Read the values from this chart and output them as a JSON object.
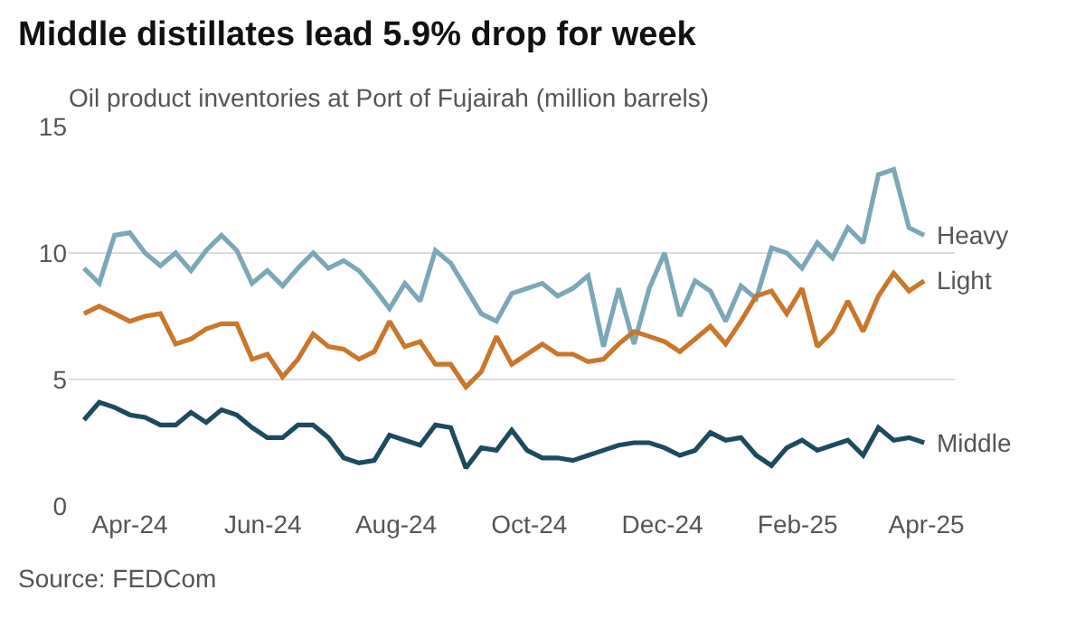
{
  "chart_data": {
    "type": "line",
    "title": "Middle distillates lead 5.9% drop for week",
    "subtitle": "Oil product inventories at Port of Fujairah (million barrels)",
    "x": [
      "2024-03-11",
      "2024-03-18",
      "2024-03-25",
      "2024-04-01",
      "2024-04-08",
      "2024-04-15",
      "2024-04-22",
      "2024-04-29",
      "2024-05-06",
      "2024-05-13",
      "2024-05-20",
      "2024-05-27",
      "2024-06-03",
      "2024-06-10",
      "2024-06-17",
      "2024-06-24",
      "2024-07-01",
      "2024-07-08",
      "2024-07-15",
      "2024-07-22",
      "2024-07-29",
      "2024-08-05",
      "2024-08-12",
      "2024-08-19",
      "2024-08-26",
      "2024-09-02",
      "2024-09-09",
      "2024-09-16",
      "2024-09-23",
      "2024-09-30",
      "2024-10-07",
      "2024-10-14",
      "2024-10-21",
      "2024-10-28",
      "2024-11-04",
      "2024-11-11",
      "2024-11-18",
      "2024-11-25",
      "2024-12-02",
      "2024-12-09",
      "2024-12-16",
      "2024-12-23",
      "2024-12-30",
      "2025-01-06",
      "2025-01-13",
      "2025-01-20",
      "2025-01-27",
      "2025-02-03",
      "2025-02-10",
      "2025-02-17",
      "2025-02-24",
      "2025-03-03",
      "2025-03-10",
      "2025-03-17",
      "2025-03-24",
      "2025-03-31"
    ],
    "series": [
      {
        "name": "Heavy",
        "color": "#7ba7b7",
        "values": [
          9.4,
          8.8,
          10.7,
          10.8,
          10.0,
          9.5,
          10.0,
          9.3,
          10.1,
          10.7,
          10.1,
          8.8,
          9.3,
          8.7,
          9.4,
          10.0,
          9.4,
          9.7,
          9.3,
          8.6,
          7.8,
          8.8,
          8.1,
          10.1,
          9.6,
          8.6,
          7.6,
          7.3,
          8.4,
          8.6,
          8.8,
          8.3,
          8.6,
          9.1,
          6.3,
          8.6,
          6.4,
          8.6,
          10.0,
          7.5,
          8.9,
          8.5,
          7.3,
          8.7,
          8.2,
          10.2,
          10.0,
          9.4,
          10.4,
          9.8,
          11.0,
          10.4,
          13.1,
          13.3,
          11.0,
          10.7
        ]
      },
      {
        "name": "Light",
        "color": "#c8772b",
        "values": [
          7.6,
          7.9,
          7.6,
          7.3,
          7.5,
          7.6,
          6.4,
          6.6,
          7.0,
          7.2,
          7.2,
          5.8,
          6.0,
          5.1,
          5.8,
          6.8,
          6.3,
          6.2,
          5.8,
          6.1,
          7.3,
          6.3,
          6.5,
          5.6,
          5.6,
          4.7,
          5.3,
          6.7,
          5.6,
          6.0,
          6.4,
          6.0,
          6.0,
          5.7,
          5.8,
          6.4,
          6.9,
          6.7,
          6.5,
          6.1,
          6.6,
          7.1,
          6.4,
          7.3,
          8.3,
          8.5,
          7.6,
          8.6,
          6.3,
          6.9,
          8.1,
          6.9,
          8.3,
          9.2,
          8.5,
          8.9
        ]
      },
      {
        "name": "Middle",
        "color": "#1d4a5e",
        "values": [
          3.4,
          4.1,
          3.9,
          3.6,
          3.5,
          3.2,
          3.2,
          3.7,
          3.3,
          3.8,
          3.6,
          3.1,
          2.7,
          2.7,
          3.2,
          3.2,
          2.7,
          1.9,
          1.7,
          1.8,
          2.8,
          2.6,
          2.4,
          3.2,
          3.1,
          1.5,
          2.3,
          2.2,
          3.0,
          2.2,
          1.9,
          1.9,
          1.8,
          2.0,
          2.2,
          2.4,
          2.5,
          2.5,
          2.3,
          2.0,
          2.2,
          2.9,
          2.6,
          2.7,
          2.0,
          1.6,
          2.3,
          2.6,
          2.2,
          2.4,
          2.6,
          2.0,
          3.1,
          2.6,
          2.7,
          2.5
        ]
      }
    ],
    "ylim": [
      0,
      15
    ],
    "yticks": [
      0,
      5,
      10,
      15
    ],
    "xlim": [
      "2024-03-04",
      "2025-04-14"
    ],
    "xticks": [
      {
        "value": "2024-04-01",
        "label": "Apr-24"
      },
      {
        "value": "2024-06-01",
        "label": "Jun-24"
      },
      {
        "value": "2024-08-01",
        "label": "Aug-24"
      },
      {
        "value": "2024-10-01",
        "label": "Oct-24"
      },
      {
        "value": "2024-12-01",
        "label": "Dec-24"
      },
      {
        "value": "2025-02-01",
        "label": "Feb-25"
      },
      {
        "value": "2025-04-01",
        "label": "Apr-25"
      }
    ],
    "grid": "y",
    "legend": false,
    "marker": "none",
    "line_style": "solid",
    "annotations": [
      "Source: FEDCom"
    ]
  }
}
